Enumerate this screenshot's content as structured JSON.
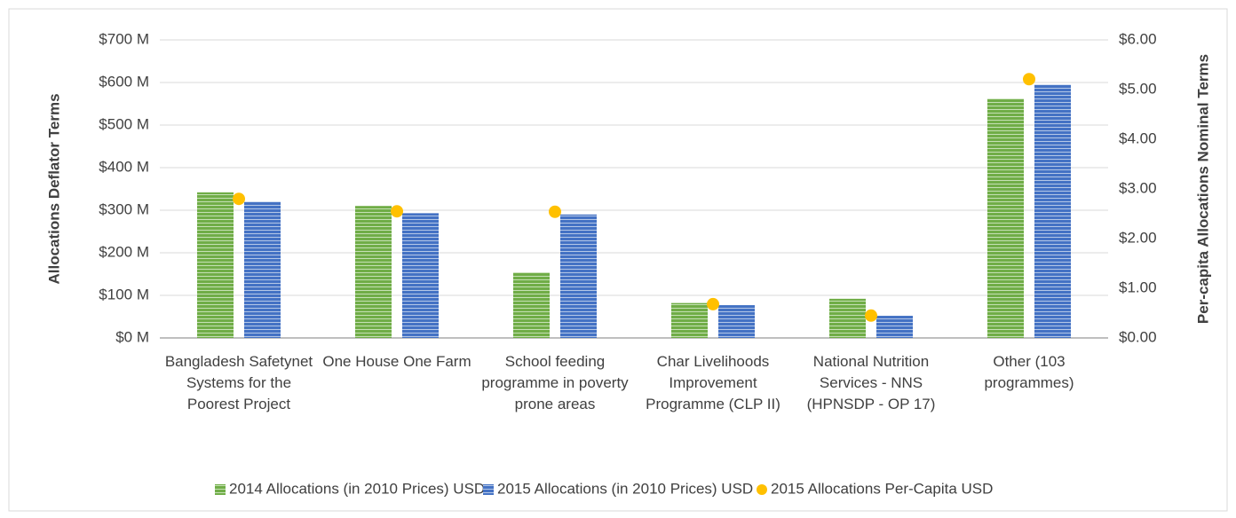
{
  "chart_data": {
    "type": "bar",
    "y_label": "Allocations Deflator Terms",
    "y2_label": "Per-capita Allocations Nominal Terms",
    "categories": [
      "Bangladesh Safetynet Systems for the Poorest Project",
      "One House One Farm",
      "School feeding programme in poverty prone areas",
      "Char Livelihoods Improvement Programme (CLP II)",
      "National Nutrition Services - NNS (HPNSDP - OP 17)",
      "Other (103 programmes)"
    ],
    "series": [
      {
        "name": "2014 Allocations (in 2010 Prices) USD",
        "color": "#70ad47",
        "values": [
          342,
          310,
          154,
          82,
          92,
          562
        ]
      },
      {
        "name": "2015 Allocations (in 2010 Prices) USD",
        "color": "#4472c4",
        "values": [
          320,
          293,
          290,
          77,
          52,
          595
        ]
      },
      {
        "name": "2015 Allocations Per-Capita USD",
        "color": "#ffc000",
        "type": "scatter",
        "axis": "y2",
        "values": [
          2.8,
          2.55,
          2.54,
          0.68,
          0.45,
          5.21
        ]
      }
    ],
    "ylim": [
      0,
      700
    ],
    "yticks": [
      {
        "value": 0,
        "label": "$0 M"
      },
      {
        "value": 100,
        "label": "$100 M"
      },
      {
        "value": 200,
        "label": "$200 M"
      },
      {
        "value": 300,
        "label": "$300 M"
      },
      {
        "value": 400,
        "label": "$400 M"
      },
      {
        "value": 500,
        "label": "$500 M"
      },
      {
        "value": 600,
        "label": "$600 M"
      },
      {
        "value": 700,
        "label": "$700 M"
      }
    ],
    "y2lim": [
      0,
      6
    ],
    "y2ticks": [
      {
        "value": 0,
        "label": "$0.00"
      },
      {
        "value": 1,
        "label": "$1.00"
      },
      {
        "value": 2,
        "label": "$2.00"
      },
      {
        "value": 3,
        "label": "$3.00"
      },
      {
        "value": 4,
        "label": "$4.00"
      },
      {
        "value": 5,
        "label": "$5.00"
      },
      {
        "value": 6,
        "label": "$6.00"
      }
    ],
    "grid": true,
    "legend": "bottom"
  }
}
